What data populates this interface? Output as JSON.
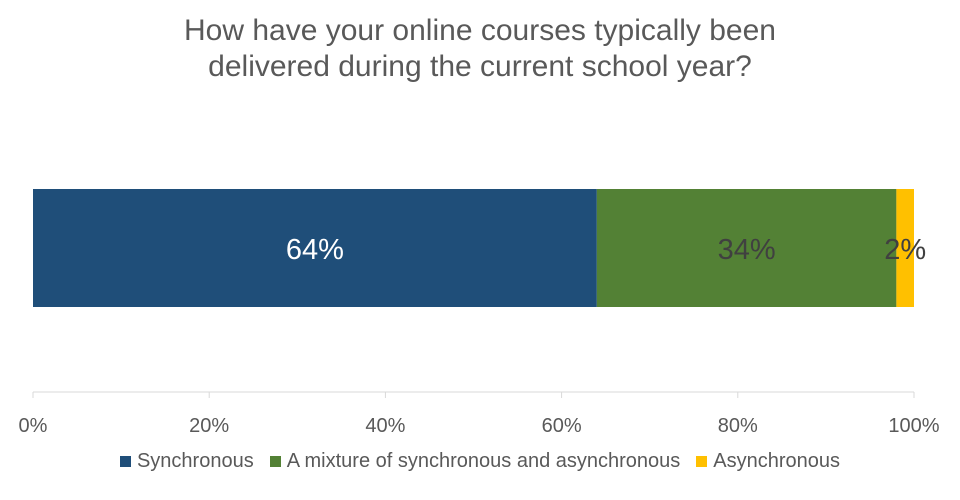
{
  "chart_data": {
    "type": "bar",
    "orientation": "horizontal-stacked",
    "title_lines": [
      "How have your online courses typically been",
      "delivered during the current school year?"
    ],
    "categories": [
      ""
    ],
    "series": [
      {
        "name": "Synchronous",
        "values": [
          64
        ],
        "label": "64%",
        "color": "#1F4E79",
        "label_color": "#FFFFFF"
      },
      {
        "name": "A mixture of synchronous and asynchronous",
        "values": [
          34
        ],
        "label": "34%",
        "color": "#538135",
        "label_color": "#404040"
      },
      {
        "name": "Asynchronous",
        "values": [
          2
        ],
        "label": "2%",
        "color": "#FFC000",
        "label_color": "#404040"
      }
    ],
    "xlim": [
      0,
      100
    ],
    "x_ticks": [
      "0%",
      "20%",
      "40%",
      "60%",
      "80%",
      "100%"
    ],
    "grid": false,
    "legend_position": "bottom"
  }
}
